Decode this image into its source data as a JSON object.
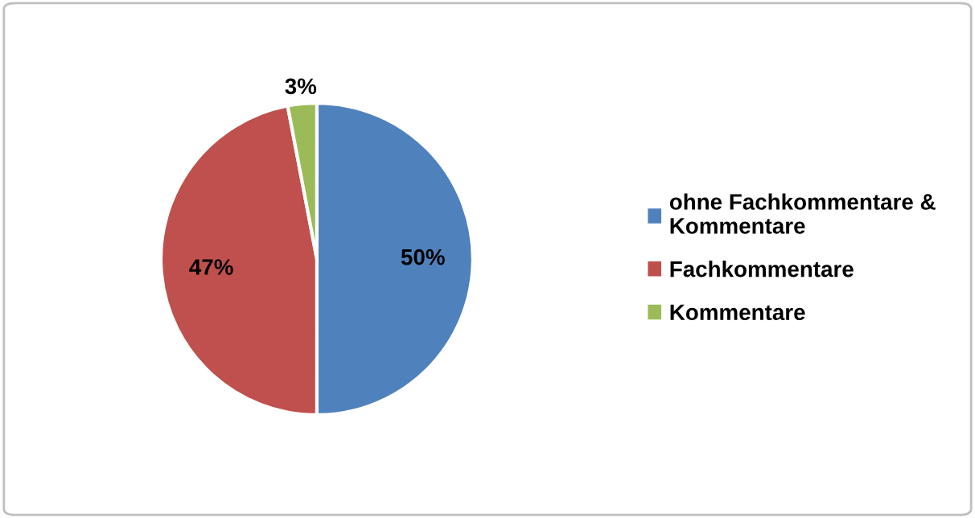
{
  "chart_data": {
    "type": "pie",
    "categories": [
      "ohne Fachkommentare & Kommentare",
      "Fachkommentare",
      "Kommentare"
    ],
    "values": [
      50,
      47,
      3
    ],
    "colors": [
      "#4f81bd",
      "#c0504d",
      "#9bbb59"
    ],
    "value_labels": [
      "50%",
      "47%",
      "3%"
    ],
    "legend": "right"
  }
}
